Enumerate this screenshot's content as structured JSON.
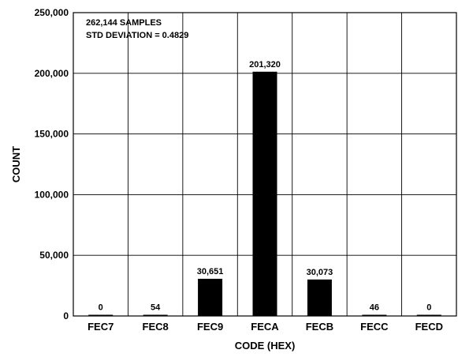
{
  "chart_data": {
    "type": "bar",
    "categories": [
      "FEC7",
      "FEC8",
      "FEC9",
      "FECA",
      "FECB",
      "FECC",
      "FECD"
    ],
    "values": [
      0,
      54,
      30651,
      201320,
      30073,
      46,
      0
    ],
    "value_labels": [
      "0",
      "54",
      "30,651",
      "201,320",
      "30,073",
      "46",
      "0"
    ],
    "xlabel": "CODE (HEX)",
    "ylabel": "COUNT",
    "ylim": [
      0,
      250000
    ],
    "yticks": [
      0,
      50000,
      100000,
      150000,
      200000,
      250000
    ],
    "ytick_labels": [
      "0",
      "50,000",
      "100,000",
      "150,000",
      "200,000",
      "250,000"
    ],
    "grid": "vertical",
    "annotations": [
      "262,144 SAMPLES",
      "STD DEVIATION = 0.4829"
    ],
    "bar_color": "#000000"
  }
}
